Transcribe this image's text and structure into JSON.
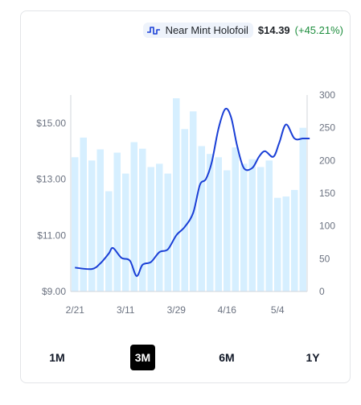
{
  "legend": {
    "name": "Near Mint Holofoil",
    "price": "$14.39",
    "change": "(+45.21%)",
    "change_color": "#1e8e3e",
    "icon": "line-chart-icon"
  },
  "ranges": [
    {
      "label": "1M",
      "active": false
    },
    {
      "label": "3M",
      "active": true
    },
    {
      "label": "6M",
      "active": false
    },
    {
      "label": "1Y",
      "active": false
    }
  ],
  "chart_data": {
    "type": "bar",
    "title": "",
    "xlabel": "",
    "ylabel": "",
    "x_ticks": [
      "2/21",
      "3/11",
      "3/29",
      "4/16",
      "5/4"
    ],
    "y_left": {
      "min": 9,
      "max": 16,
      "ticks": [
        "$9.00",
        "$11.00",
        "$13.00",
        "$15.00"
      ],
      "tick_values": [
        9,
        11,
        13,
        15
      ]
    },
    "y_right": {
      "min": 0,
      "max": 300,
      "ticks": [
        "0",
        "50",
        "100",
        "150",
        "200",
        "250",
        "300"
      ],
      "tick_values": [
        0,
        50,
        100,
        150,
        200,
        250,
        300
      ]
    },
    "grid": false,
    "colors": {
      "bars": "#d6efff",
      "line": "#1a3fd6"
    },
    "series": [
      {
        "type": "bar",
        "axis": "right",
        "values": [
          205,
          235,
          200,
          217,
          153,
          212,
          180,
          228,
          218,
          190,
          195,
          180,
          295,
          248,
          275,
          222,
          210,
          205,
          185,
          220,
          195,
          202,
          190,
          200,
          143,
          145,
          155,
          250
        ]
      },
      {
        "type": "line",
        "axis": "left",
        "points": [
          [
            0.0,
            9.85
          ],
          [
            2.0,
            9.8
          ],
          [
            3.0,
            10.0
          ],
          [
            4.0,
            10.35
          ],
          [
            4.5,
            10.55
          ],
          [
            5.5,
            10.2
          ],
          [
            6.5,
            10.1
          ],
          [
            7.3,
            9.55
          ],
          [
            8.0,
            9.95
          ],
          [
            9.0,
            10.05
          ],
          [
            10.0,
            10.4
          ],
          [
            11.0,
            10.5
          ],
          [
            12.0,
            11.0
          ],
          [
            13.0,
            11.3
          ],
          [
            14.0,
            11.8
          ],
          [
            14.8,
            12.8
          ],
          [
            15.5,
            13.0
          ],
          [
            16.2,
            13.6
          ],
          [
            17.0,
            14.8
          ],
          [
            17.8,
            15.5
          ],
          [
            18.5,
            15.2
          ],
          [
            19.2,
            14.2
          ],
          [
            20.0,
            13.4
          ],
          [
            21.0,
            13.4
          ],
          [
            21.8,
            13.8
          ],
          [
            22.5,
            14.0
          ],
          [
            23.5,
            13.8
          ],
          [
            24.2,
            14.3
          ],
          [
            25.0,
            14.95
          ],
          [
            26.0,
            14.45
          ],
          [
            27.0,
            14.45
          ],
          [
            27.8,
            14.45
          ]
        ]
      }
    ]
  }
}
